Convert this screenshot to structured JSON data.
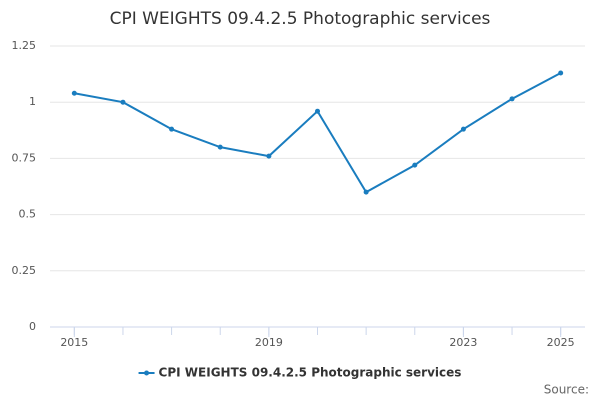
{
  "chart_data": {
    "type": "line",
    "title": "CPI WEIGHTS 09.4.2.5 Photographic services",
    "x": [
      2015,
      2016,
      2017,
      2018,
      2019,
      2020,
      2021,
      2022,
      2023,
      2024,
      2025
    ],
    "series": [
      {
        "name": "CPI WEIGHTS 09.4.2.5 Photographic services",
        "color": "#1a7dbf",
        "values": [
          1.04,
          1.0,
          0.88,
          0.8,
          0.76,
          0.96,
          0.6,
          0.72,
          0.88,
          1.015,
          1.13
        ]
      }
    ],
    "xlim": [
      2014.5,
      2025.5
    ],
    "xticks": [
      2015,
      2019,
      2023,
      2025
    ],
    "ylim": [
      0,
      1.25
    ],
    "yticks": [
      0,
      0.25,
      0.5,
      0.75,
      1,
      1.25
    ],
    "grid": true,
    "legend": "bottom",
    "source": "Source:"
  }
}
